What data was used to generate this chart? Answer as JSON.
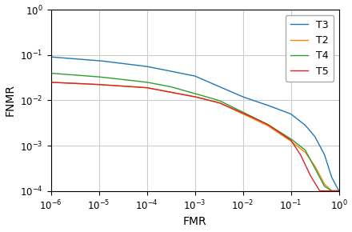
{
  "xlabel": "FMR",
  "ylabel": "FNMR",
  "xlim": [
    1e-06,
    1.0
  ],
  "ylim": [
    0.0001,
    1.0
  ],
  "legend_labels": [
    "T3",
    "T2",
    "T4",
    "T5"
  ],
  "legend_colors": [
    "#1f77b4",
    "#ff7f0e",
    "#2ca02c",
    "#d62728"
  ],
  "line_width": 1.0,
  "grid_color": "#cccccc",
  "grid_linewidth": 0.8,
  "T3_keypoints_fmr": [
    -6,
    -5,
    -4,
    -3,
    -2,
    -1.5,
    -1,
    -0.7,
    -0.5,
    -0.3,
    -0.15,
    0
  ],
  "T3_keypoints_fnmr": [
    -1.04,
    -1.12,
    -1.25,
    -1.46,
    -1.92,
    -2.1,
    -2.3,
    -2.55,
    -2.8,
    -3.2,
    -3.7,
    -4.0
  ],
  "T2_keypoints_fmr": [
    -6,
    -5,
    -4,
    -3.5,
    -3,
    -2.5,
    -2,
    -1.5,
    -1,
    -0.7,
    -0.5,
    -0.3,
    -0.15,
    0
  ],
  "T2_keypoints_fnmr": [
    -1.6,
    -1.65,
    -1.72,
    -1.82,
    -1.92,
    -2.05,
    -2.3,
    -2.55,
    -2.9,
    -3.15,
    -3.45,
    -3.85,
    -4.0,
    -4.0
  ],
  "T4_keypoints_fmr": [
    -6,
    -5,
    -4,
    -3.5,
    -3,
    -2.5,
    -2,
    -1.5,
    -1,
    -0.7,
    -0.5,
    -0.3,
    -0.15,
    0
  ],
  "T4_keypoints_fnmr": [
    -1.4,
    -1.48,
    -1.6,
    -1.7,
    -1.85,
    -2.0,
    -2.26,
    -2.52,
    -2.85,
    -3.1,
    -3.5,
    -3.9,
    -4.0,
    -4.0
  ],
  "T5_keypoints_fmr": [
    -6,
    -5,
    -4,
    -3.5,
    -3,
    -2.5,
    -2,
    -1.5,
    -1,
    -0.8,
    -0.6,
    -0.4,
    -0.2,
    -0.1,
    0
  ],
  "T5_keypoints_fnmr": [
    -1.6,
    -1.65,
    -1.72,
    -1.82,
    -1.92,
    -2.05,
    -2.28,
    -2.52,
    -2.88,
    -3.2,
    -3.65,
    -4.0,
    -4.0,
    -4.0,
    -4.0
  ]
}
